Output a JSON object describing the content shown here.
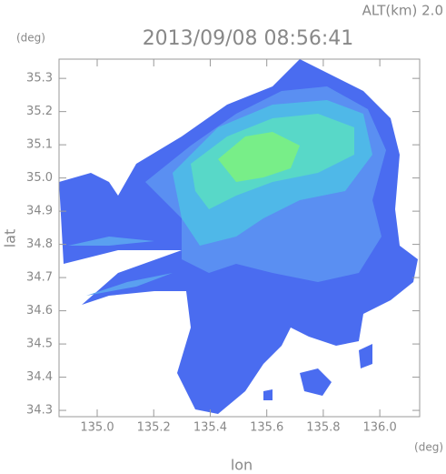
{
  "chart_data": {
    "type": "map",
    "title": "2013/09/08 08:56:41",
    "subtitle": "ALT(km) 2.0",
    "y_unit": "(deg)",
    "x_unit": "(deg)",
    "xlabel": "lon",
    "ylabel": "lat",
    "xlim": [
      134.865,
      136.141
    ],
    "ylim": [
      34.281,
      35.358
    ],
    "xticks": [
      {
        "value": 135.0,
        "label": "135.0"
      },
      135.2,
      135.4,
      135.6,
      135.8,
      {
        "value": 136.0,
        "label": "136.0"
      }
    ],
    "yticks": [
      34.3,
      34.4,
      34.5,
      34.6,
      34.7,
      34.8,
      34.9,
      {
        "value": 35.0,
        "label": "35.0"
      },
      35.1,
      35.2,
      35.3
    ]
  }
}
